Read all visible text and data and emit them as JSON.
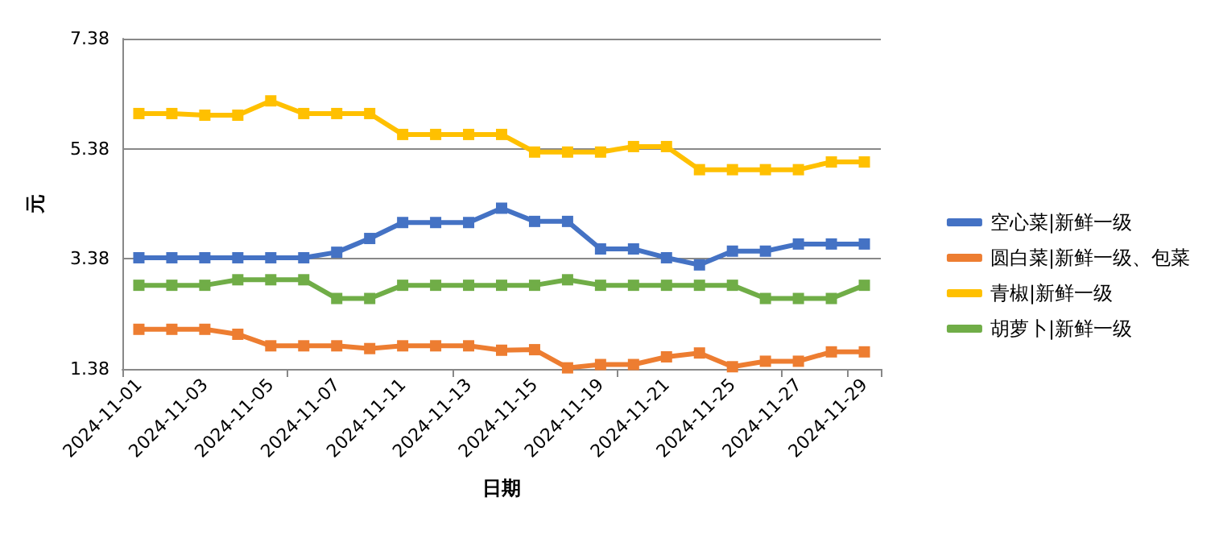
{
  "chart_data": {
    "type": "line",
    "xlabel": "日期",
    "ylabel": "元",
    "categories": [
      "2024-11-01",
      null,
      "2024-11-03",
      null,
      "2024-11-05",
      null,
      "2024-11-07",
      null,
      "2024-11-11",
      null,
      "2024-11-13",
      null,
      "2024-11-15",
      null,
      "2024-11-19",
      null,
      "2024-11-21",
      null,
      "2024-11-25",
      null,
      "2024-11-27",
      null,
      "2024-11-29"
    ],
    "series": [
      {
        "name": "空心菜|新鲜一级",
        "color": "#4472c4",
        "values": [
          3.4,
          3.4,
          3.4,
          3.4,
          3.4,
          3.4,
          3.5,
          3.75,
          4.04,
          4.04,
          4.04,
          4.3,
          4.06,
          4.06,
          3.56,
          3.56,
          3.4,
          3.27,
          3.52,
          3.52,
          3.65,
          3.65,
          3.65
        ]
      },
      {
        "name": "圆白菜|新鲜一级、包菜",
        "color": "#ed7d31",
        "values": [
          2.1,
          2.1,
          2.1,
          2.01,
          1.8,
          1.8,
          1.8,
          1.75,
          1.8,
          1.8,
          1.8,
          1.72,
          1.73,
          1.4,
          1.46,
          1.46,
          1.6,
          1.67,
          1.42,
          1.52,
          1.52,
          1.69,
          1.69
        ]
      },
      {
        "name": "青椒|新鲜一级",
        "color": "#ffc000",
        "values": [
          6.02,
          6.02,
          5.99,
          5.99,
          6.25,
          6.02,
          6.02,
          6.02,
          5.64,
          5.64,
          5.64,
          5.64,
          5.32,
          5.32,
          5.32,
          5.42,
          5.42,
          5.0,
          5.0,
          5.0,
          5.0,
          5.14,
          5.14
        ]
      },
      {
        "name": "胡萝卜|新鲜一级",
        "color": "#70ad47",
        "values": [
          2.9,
          2.9,
          2.9,
          3.0,
          3.0,
          3.0,
          2.66,
          2.66,
          2.9,
          2.9,
          2.9,
          2.9,
          2.9,
          3.0,
          2.9,
          2.9,
          2.9,
          2.9,
          2.9,
          2.66,
          2.66,
          2.66,
          2.9
        ]
      }
    ],
    "ylim": [
      1.38,
      7.38
    ],
    "yticks": [
      1.38,
      3.38,
      5.38,
      7.38
    ],
    "grid": "y",
    "legend": "right",
    "marker": "square",
    "line_style": "solid"
  }
}
